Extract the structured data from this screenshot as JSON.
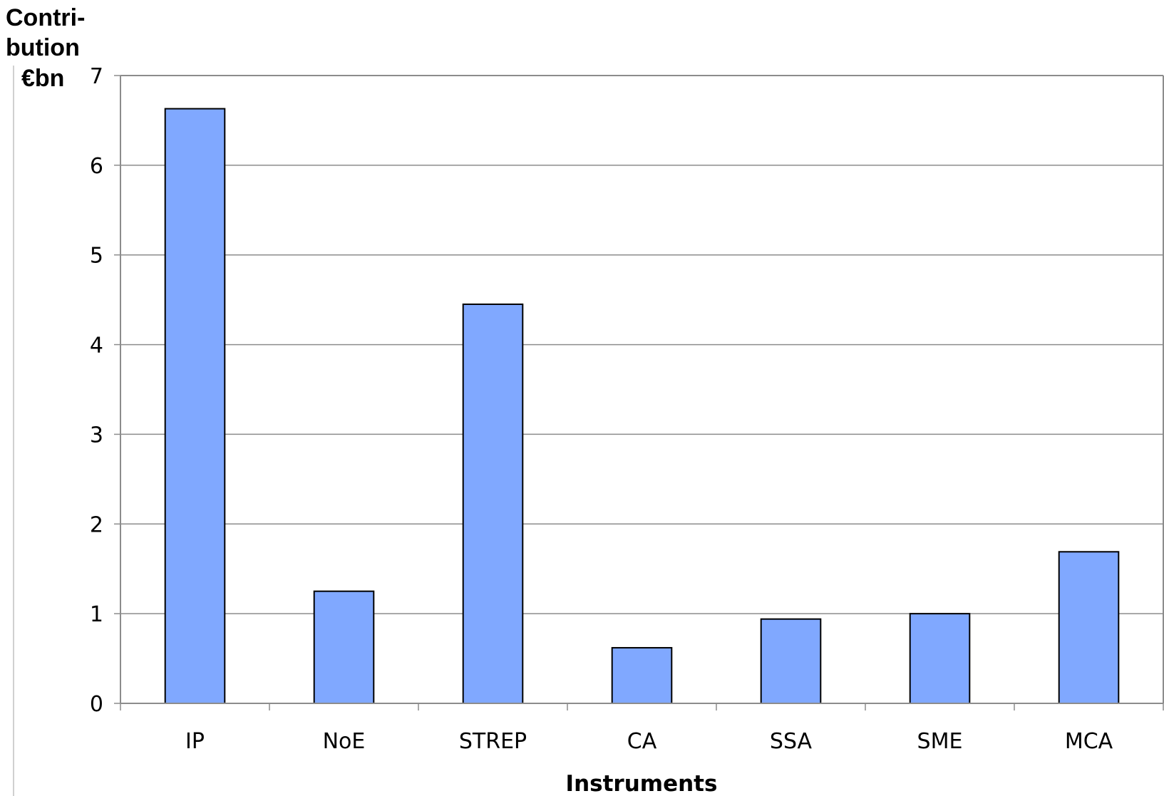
{
  "chart_data": {
    "type": "bar",
    "title": "",
    "ylabel_lines": [
      "Contri-",
      "bution",
      "€bn"
    ],
    "xlabel": "Instruments",
    "categories": [
      "IP",
      "NoE",
      "STREP",
      "CA",
      "SSA",
      "SME",
      "MCA"
    ],
    "values": [
      6.63,
      1.25,
      4.45,
      0.62,
      0.94,
      1.0,
      1.69
    ],
    "ylim": [
      0,
      7
    ],
    "yticks": [
      0,
      1,
      2,
      3,
      4,
      5,
      6,
      7
    ],
    "grid": true,
    "legend": "none",
    "colors": {
      "bar_fill": "#80a8ff",
      "bar_stroke": "#000000",
      "grid": "#8c8c8c",
      "axis": "#8c8c8c"
    }
  }
}
